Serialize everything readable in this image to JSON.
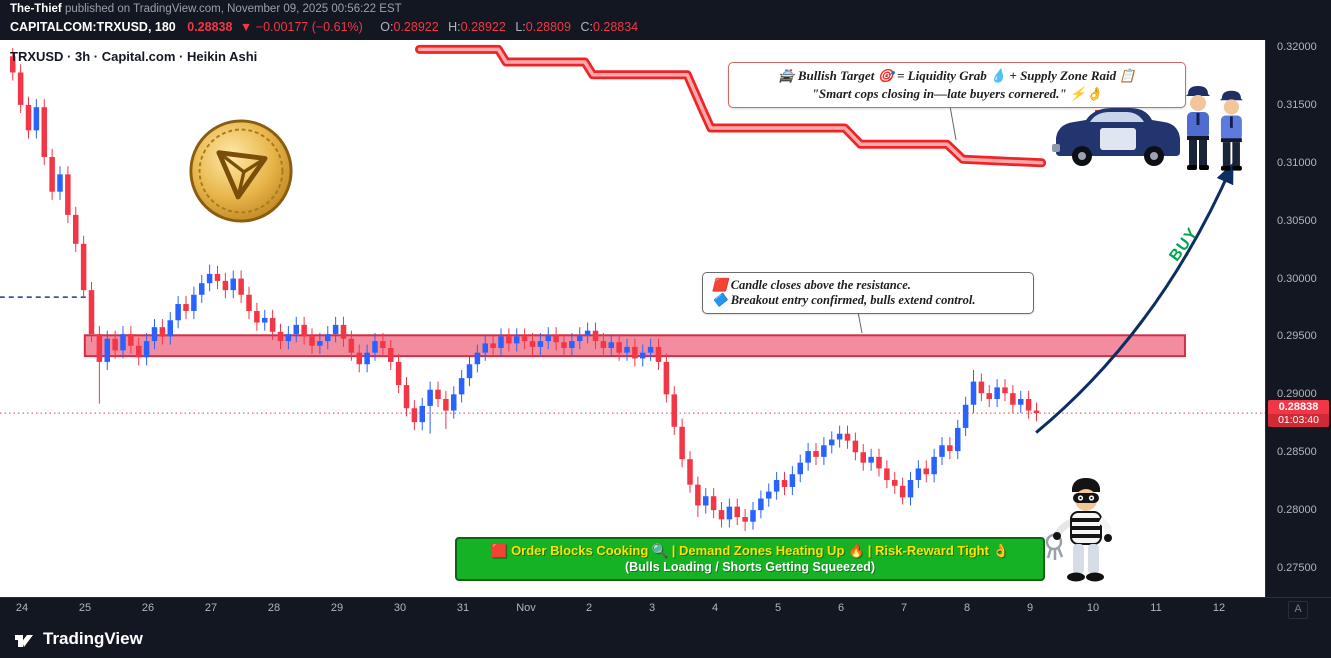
{
  "header": {
    "author": "The-Thief",
    "byline_rest": " published on TradingView.com, November 09, 2025 00:56:22 EST",
    "symbol": "CAPITALCOM:TRXUSD, 180",
    "last_price": "0.28838",
    "change": "▼ −0.00177 (−0.61%)",
    "ohlc": [
      {
        "label": "O:",
        "value": "0.28922"
      },
      {
        "label": "H:",
        "value": "0.28922"
      },
      {
        "label": "L:",
        "value": "0.28809"
      },
      {
        "label": "C:",
        "value": "0.28834"
      }
    ]
  },
  "chart": {
    "legend": "TRXUSD · 3h · Capital.com · Heikin Ashi"
  },
  "annotations": {
    "top_callout_line1": "🚔 Bullish Target 🎯 = Liquidity Grab 💧 + Supply Zone Raid 📋",
    "top_callout_line2": "\"Smart cops closing in—late buyers cornered.\" ⚡👌",
    "mid_callout_line1": "🟥 Candle closes above the resistance.",
    "mid_callout_line2": "🔷 Breakout entry confirmed, bulls extend control.",
    "buy_label": "BUY",
    "banner_line1": "🟥 Order Blocks Cooking 🔍 | Demand Zones Heating Up 🔥 | Risk-Reward Tight 👌",
    "banner_line2": "(Bulls Loading / Shorts Getting Squeezed)"
  },
  "price_label": {
    "price": "0.28838",
    "countdown": "01:03:40"
  },
  "axes": {
    "y_ticks": [
      "0.32000",
      "0.31500",
      "0.31000",
      "0.30500",
      "0.30000",
      "0.29500",
      "0.29000",
      "0.28500",
      "0.28000",
      "0.27500"
    ],
    "x_ticks": [
      "24",
      "25",
      "26",
      "27",
      "28",
      "29",
      "30",
      "31",
      "Nov",
      "2",
      "3",
      "4",
      "5",
      "6",
      "7",
      "8",
      "9",
      "10",
      "11",
      "12"
    ],
    "corner_label": "A"
  },
  "footer": {
    "brand": "TradingView"
  },
  "chart_data": {
    "type": "candlestick",
    "style": "Heikin Ashi",
    "symbol": "TRXUSD",
    "exchange": "CAPITALCOM (Capital.com)",
    "interval": "180 min (3h)",
    "current_price": 0.28838,
    "y_range": [
      0.275,
      0.32
    ],
    "x_range_labels": [
      "Oct 24",
      "Nov 12"
    ],
    "first_open": 0.3192,
    "closes": [
      0.3178,
      0.315,
      0.3128,
      0.3148,
      0.3105,
      0.3075,
      0.309,
      0.3055,
      0.303,
      0.299,
      0.2952,
      0.2928,
      0.2948,
      0.2938,
      0.2952,
      0.2942,
      0.2932,
      0.2946,
      0.2958,
      0.295,
      0.2964,
      0.2978,
      0.2972,
      0.2986,
      0.2996,
      0.3004,
      0.2998,
      0.299,
      0.3,
      0.2986,
      0.2972,
      0.2962,
      0.2966,
      0.2954,
      0.2946,
      0.2952,
      0.296,
      0.295,
      0.2942,
      0.2946,
      0.2952,
      0.296,
      0.2948,
      0.2936,
      0.2926,
      0.2936,
      0.2946,
      0.294,
      0.2928,
      0.2908,
      0.2888,
      0.2876,
      0.289,
      0.2904,
      0.2896,
      0.2886,
      0.29,
      0.2914,
      0.2926,
      0.2936,
      0.2944,
      0.294,
      0.295,
      0.2944,
      0.295,
      0.2946,
      0.2941,
      0.2946,
      0.2951,
      0.2945,
      0.294,
      0.2946,
      0.2951,
      0.2955,
      0.2946,
      0.294,
      0.2945,
      0.2936,
      0.2941,
      0.2931,
      0.2936,
      0.2941,
      0.2928,
      0.29,
      0.2872,
      0.2844,
      0.2822,
      0.2804,
      0.2812,
      0.28,
      0.2792,
      0.2803,
      0.2794,
      0.279,
      0.28,
      0.281,
      0.2816,
      0.2826,
      0.282,
      0.2831,
      0.2841,
      0.2851,
      0.2846,
      0.2856,
      0.2861,
      0.2866,
      0.286,
      0.285,
      0.2841,
      0.2846,
      0.2836,
      0.2826,
      0.2821,
      0.2811,
      0.2826,
      0.2836,
      0.2831,
      0.2846,
      0.2856,
      0.2851,
      0.2871,
      0.2891,
      0.2911,
      0.2901,
      0.2896,
      0.2906,
      0.2901,
      0.2891,
      0.2896,
      0.2886,
      0.28838
    ],
    "high_overrides": {
      "0": 0.3199,
      "25": 0.3012,
      "122": 0.2921
    },
    "low_overrides": {
      "11": 0.2892,
      "53": 0.2866,
      "55": 0.287,
      "87": 0.2794,
      "93": 0.2782,
      "113": 0.2805
    },
    "resistance_zone": {
      "top": 0.2951,
      "bottom": 0.2933,
      "from_index": 9.5,
      "to_index": 149.2
    },
    "entry_line": {
      "price": 0.2984,
      "from_index": -1.3,
      "to_index": 9.9
    },
    "supply_zone": {
      "points": [
        [
          52,
          0.3198
        ],
        [
          62,
          0.3198
        ],
        [
          63,
          0.3187
        ],
        [
          73,
          0.3187
        ],
        [
          74,
          0.3176
        ],
        [
          86,
          0.3176
        ],
        [
          88,
          0.3145
        ],
        [
          89,
          0.313
        ],
        [
          106,
          0.313
        ],
        [
          108,
          0.3116
        ],
        [
          119,
          0.3116
        ],
        [
          121,
          0.3103
        ],
        [
          131,
          0.31
        ]
      ]
    },
    "buy_arrow": {
      "from": [
        130.3,
        0.2867
      ],
      "to": [
        155.2,
        0.3098
      ]
    },
    "colors": {
      "up": "#2962ff",
      "down": "#f23645",
      "zone_fill": "#f28da0",
      "zone_border": "#d12f47",
      "supply_edge": "#ee2428",
      "supply_center": "#ffabab",
      "current_line": "#f23645",
      "entry_line": "#1a3a8f",
      "arrow": "#0d2e63",
      "buy": "#00a651"
    }
  }
}
